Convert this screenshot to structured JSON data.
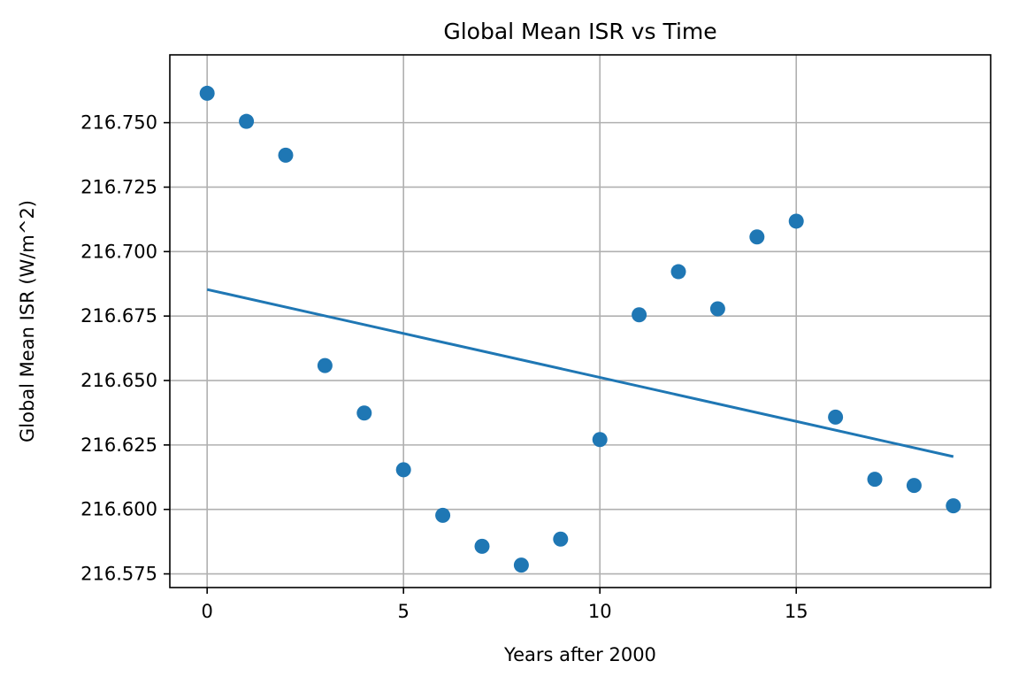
{
  "chart_data": {
    "type": "scatter",
    "title": "Global Mean ISR vs Time",
    "xlabel": "Years after 2000",
    "ylabel": "Global Mean ISR (W/m^2)",
    "xlim": [
      -0.95,
      19.95
    ],
    "ylim": [
      216.5697,
      216.7763
    ],
    "xticks": [
      0,
      5,
      10,
      15
    ],
    "xtick_labels": [
      "0",
      "5",
      "10",
      "15"
    ],
    "yticks": [
      216.575,
      216.6,
      216.625,
      216.65,
      216.675,
      216.7,
      216.725,
      216.75
    ],
    "ytick_labels": [
      "216.575",
      "216.600",
      "216.625",
      "216.650",
      "216.675",
      "216.700",
      "216.725",
      "216.750"
    ],
    "grid": true,
    "series": [
      {
        "kind": "scatter",
        "color": "#1f77b4",
        "x": [
          0,
          1,
          2,
          3,
          4,
          5,
          6,
          7,
          8,
          9,
          10,
          11,
          12,
          13,
          14,
          15,
          16,
          17,
          18,
          19
        ],
        "y": [
          216.7614,
          216.7505,
          216.7374,
          216.6558,
          216.6374,
          216.6154,
          216.5977,
          216.5857,
          216.5784,
          216.5885,
          216.6271,
          216.6755,
          216.6922,
          216.6778,
          216.7057,
          216.7118,
          216.6358,
          216.6117,
          216.6093,
          216.6014
        ]
      },
      {
        "kind": "line",
        "color": "#1f77b4",
        "x": [
          0,
          19
        ],
        "y": [
          216.6853,
          216.6205
        ]
      }
    ]
  }
}
